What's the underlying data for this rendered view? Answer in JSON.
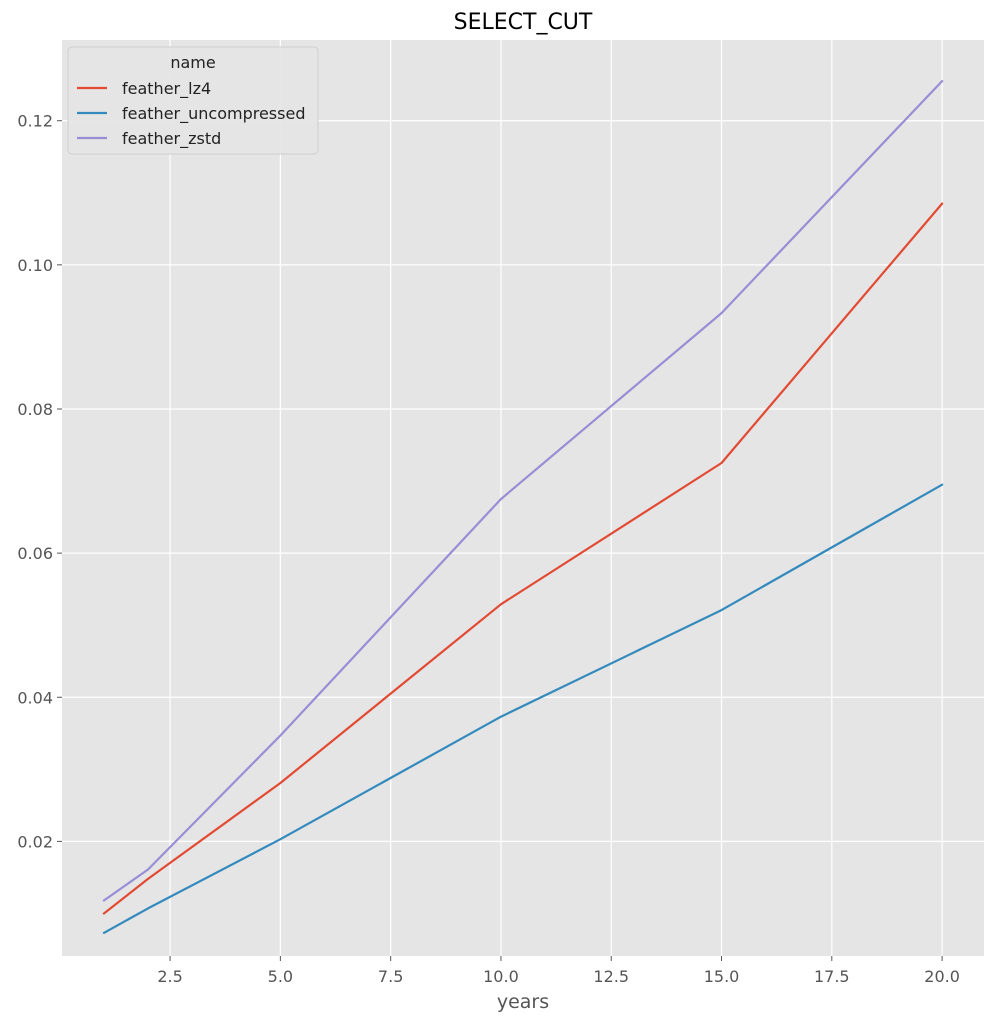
{
  "chart_data": {
    "type": "line",
    "title": "SELECT_CUT",
    "xlabel": "years",
    "ylabel": "",
    "xlim": [
      0.05,
      20.95
    ],
    "ylim": [
      0.0041,
      0.1312
    ],
    "x_ticks": [
      2.5,
      5.0,
      7.5,
      10.0,
      12.5,
      15.0,
      17.5,
      20.0
    ],
    "x_tick_labels": [
      "2.5",
      "5.0",
      "7.5",
      "10.0",
      "12.5",
      "15.0",
      "17.5",
      "20.0"
    ],
    "y_ticks": [
      0.02,
      0.04,
      0.06,
      0.08,
      0.1,
      0.12
    ],
    "y_tick_labels": [
      "0.02",
      "0.04",
      "0.06",
      "0.08",
      "0.10",
      "0.12"
    ],
    "grid": true,
    "legend": {
      "title": "name",
      "position": "top-left"
    },
    "x": [
      1,
      2,
      5,
      10,
      15,
      20
    ],
    "series": [
      {
        "name": "feather_lz4",
        "color": "#e24a33",
        "values": [
          0.01,
          0.0148,
          0.0281,
          0.0529,
          0.0725,
          0.1085
        ]
      },
      {
        "name": "feather_uncompressed",
        "color": "#348abd",
        "values": [
          0.0073,
          0.0107,
          0.0203,
          0.0373,
          0.0521,
          0.0695
        ]
      },
      {
        "name": "feather_zstd",
        "color": "#988ed5",
        "values": [
          0.0118,
          0.0161,
          0.0347,
          0.0675,
          0.0933,
          0.1255
        ]
      }
    ]
  }
}
